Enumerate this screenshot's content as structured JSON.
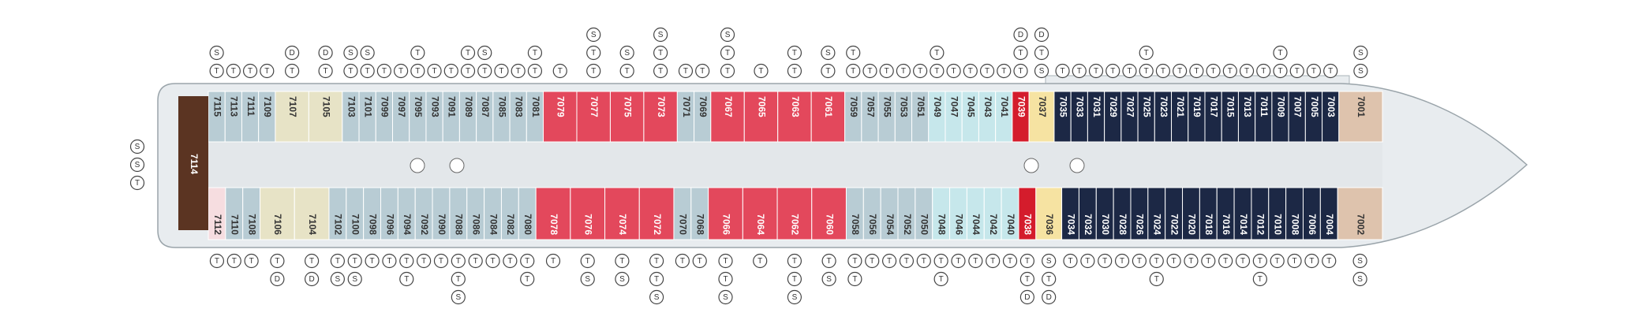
{
  "deck": {
    "stern_cabin": {
      "number": "7114",
      "color": "#5b3422"
    },
    "stern_icons": [
      "S",
      "S",
      "T"
    ],
    "top_cabins": [
      {
        "number": "7115",
        "color": "#b8ccd4",
        "icons": [
          "S",
          "T"
        ]
      },
      {
        "number": "7113",
        "color": "#b8ccd4",
        "icons": [
          "T"
        ]
      },
      {
        "number": "7111",
        "color": "#b8ccd4",
        "icons": [
          "T"
        ]
      },
      {
        "number": "7109",
        "color": "#b8ccd4",
        "icons": [
          "T"
        ]
      },
      {
        "number": "7107",
        "color": "#e7e3c6",
        "icons": [
          "D",
          "T"
        ]
      },
      {
        "number": "7105",
        "color": "#e7e3c6",
        "icons": [
          "D",
          "T"
        ]
      },
      {
        "number": "7103",
        "color": "#b8ccd4",
        "icons": [
          "S",
          "T"
        ]
      },
      {
        "number": "7101",
        "color": "#b8ccd4",
        "icons": [
          "S",
          "T"
        ]
      },
      {
        "number": "7099",
        "color": "#b8ccd4",
        "icons": [
          "T"
        ]
      },
      {
        "number": "7097",
        "color": "#b8ccd4",
        "icons": [
          "T"
        ]
      },
      {
        "number": "7095",
        "color": "#b8ccd4",
        "icons": [
          "T",
          "T"
        ]
      },
      {
        "number": "7093",
        "color": "#b8ccd4",
        "icons": [
          "T"
        ]
      },
      {
        "number": "7091",
        "color": "#b8ccd4",
        "icons": [
          "T"
        ]
      },
      {
        "number": "7089",
        "color": "#b8ccd4",
        "icons": [
          "T",
          "T"
        ]
      },
      {
        "number": "7087",
        "color": "#b8ccd4",
        "icons": [
          "S",
          "T"
        ]
      },
      {
        "number": "7085",
        "color": "#b8ccd4",
        "icons": [
          "T"
        ]
      },
      {
        "number": "7083",
        "color": "#b8ccd4",
        "icons": [
          "T"
        ]
      },
      {
        "number": "7081",
        "color": "#b8ccd4",
        "icons": [
          "T",
          "T"
        ]
      },
      {
        "number": "7079",
        "color": "#e3485c",
        "icons": [
          "T"
        ]
      },
      {
        "number": "7077",
        "color": "#e3485c",
        "icons": [
          "S",
          "T",
          "T"
        ]
      },
      {
        "number": "7075",
        "color": "#e3485c",
        "icons": [
          "S",
          "T"
        ]
      },
      {
        "number": "7073",
        "color": "#e3485c",
        "icons": [
          "S",
          "T",
          "T"
        ]
      },
      {
        "number": "7071",
        "color": "#b8ccd4",
        "icons": [
          "T"
        ]
      },
      {
        "number": "7069",
        "color": "#b8ccd4",
        "icons": [
          "T"
        ]
      },
      {
        "number": "7067",
        "color": "#e3485c",
        "icons": [
          "S",
          "T",
          "T"
        ]
      },
      {
        "number": "7065",
        "color": "#e3485c",
        "icons": [
          "T"
        ]
      },
      {
        "number": "7063",
        "color": "#e3485c",
        "icons": [
          "T",
          "T"
        ]
      },
      {
        "number": "7061",
        "color": "#e3485c",
        "icons": [
          "S",
          "T"
        ]
      },
      {
        "number": "7059",
        "color": "#b8ccd4",
        "icons": [
          "T",
          "T"
        ]
      },
      {
        "number": "7057",
        "color": "#b8ccd4",
        "icons": [
          "T"
        ]
      },
      {
        "number": "7055",
        "color": "#b8ccd4",
        "icons": [
          "T"
        ]
      },
      {
        "number": "7053",
        "color": "#b8ccd4",
        "icons": [
          "T"
        ]
      },
      {
        "number": "7051",
        "color": "#b8ccd4",
        "icons": [
          "T"
        ]
      },
      {
        "number": "7049",
        "color": "#c6e7eb",
        "icons": [
          "T",
          "T"
        ]
      },
      {
        "number": "7047",
        "color": "#c6e7eb",
        "icons": [
          "T"
        ]
      },
      {
        "number": "7045",
        "color": "#c6e7eb",
        "icons": [
          "T"
        ]
      },
      {
        "number": "7043",
        "color": "#c6e7eb",
        "icons": [
          "T"
        ]
      },
      {
        "number": "7041",
        "color": "#c6e7eb",
        "icons": [
          "T"
        ]
      },
      {
        "number": "7039",
        "color": "#d41c2c",
        "icons": [
          "D",
          "T",
          "T"
        ]
      },
      {
        "number": "7037",
        "color": "#f6e3a2",
        "icons": [
          "D",
          "T",
          "S"
        ]
      },
      {
        "number": "7035",
        "color": "#1c2845",
        "icons": [
          "T"
        ]
      },
      {
        "number": "7033",
        "color": "#1c2845",
        "icons": [
          "T"
        ]
      },
      {
        "number": "7031",
        "color": "#1c2845",
        "icons": [
          "T"
        ]
      },
      {
        "number": "7029",
        "color": "#1c2845",
        "icons": [
          "T"
        ]
      },
      {
        "number": "7027",
        "color": "#1c2845",
        "icons": [
          "T"
        ]
      },
      {
        "number": "7025",
        "color": "#1c2845",
        "icons": [
          "T",
          "T"
        ]
      },
      {
        "number": "7023",
        "color": "#1c2845",
        "icons": [
          "T"
        ]
      },
      {
        "number": "7021",
        "color": "#1c2845",
        "icons": [
          "T"
        ]
      },
      {
        "number": "7019",
        "color": "#1c2845",
        "icons": [
          "T"
        ]
      },
      {
        "number": "7017",
        "color": "#1c2845",
        "icons": [
          "T"
        ]
      },
      {
        "number": "7015",
        "color": "#1c2845",
        "icons": [
          "T"
        ]
      },
      {
        "number": "7013",
        "color": "#1c2845",
        "icons": [
          "T"
        ]
      },
      {
        "number": "7011",
        "color": "#1c2845",
        "icons": [
          "T"
        ]
      },
      {
        "number": "7009",
        "color": "#1c2845",
        "icons": [
          "T",
          "T"
        ]
      },
      {
        "number": "7007",
        "color": "#1c2845",
        "icons": [
          "T"
        ]
      },
      {
        "number": "7005",
        "color": "#1c2845",
        "icons": [
          "T"
        ]
      },
      {
        "number": "7003",
        "color": "#1c2845",
        "icons": [
          "T"
        ]
      },
      {
        "number": "7001",
        "color": "#dec3ad",
        "icons": [
          "S",
          "S"
        ]
      }
    ],
    "bottom_cabins": [
      {
        "number": "7112",
        "color": "#f6dde0",
        "icons": [
          "T"
        ]
      },
      {
        "number": "7110",
        "color": "#b8ccd4",
        "icons": [
          "T"
        ]
      },
      {
        "number": "7108",
        "color": "#b8ccd4",
        "icons": [
          "T"
        ]
      },
      {
        "number": "7106",
        "color": "#e7e3c6",
        "icons": [
          "T",
          "D"
        ]
      },
      {
        "number": "7104",
        "color": "#e7e3c6",
        "icons": [
          "T",
          "D"
        ]
      },
      {
        "number": "7102",
        "color": "#b8ccd4",
        "icons": [
          "T",
          "S"
        ]
      },
      {
        "number": "7100",
        "color": "#b8ccd4",
        "icons": [
          "T",
          "S"
        ]
      },
      {
        "number": "7098",
        "color": "#b8ccd4",
        "icons": [
          "T"
        ]
      },
      {
        "number": "7096",
        "color": "#b8ccd4",
        "icons": [
          "T"
        ]
      },
      {
        "number": "7094",
        "color": "#b8ccd4",
        "icons": [
          "T",
          "T"
        ]
      },
      {
        "number": "7092",
        "color": "#b8ccd4",
        "icons": [
          "T"
        ]
      },
      {
        "number": "7090",
        "color": "#b8ccd4",
        "icons": [
          "T"
        ]
      },
      {
        "number": "7088",
        "color": "#b8ccd4",
        "icons": [
          "T",
          "T",
          "S"
        ]
      },
      {
        "number": "7086",
        "color": "#b8ccd4",
        "icons": [
          "T"
        ]
      },
      {
        "number": "7084",
        "color": "#b8ccd4",
        "icons": [
          "T"
        ]
      },
      {
        "number": "7082",
        "color": "#b8ccd4",
        "icons": [
          "T"
        ]
      },
      {
        "number": "7080",
        "color": "#b8ccd4",
        "icons": [
          "T",
          "T"
        ]
      },
      {
        "number": "7078",
        "color": "#e3485c",
        "icons": [
          "T"
        ]
      },
      {
        "number": "7076",
        "color": "#e3485c",
        "icons": [
          "T",
          "S"
        ]
      },
      {
        "number": "7074",
        "color": "#e3485c",
        "icons": [
          "T",
          "S"
        ]
      },
      {
        "number": "7072",
        "color": "#e3485c",
        "icons": [
          "T",
          "T",
          "S"
        ]
      },
      {
        "number": "7070",
        "color": "#b8ccd4",
        "icons": [
          "T"
        ]
      },
      {
        "number": "7068",
        "color": "#b8ccd4",
        "icons": [
          "T"
        ]
      },
      {
        "number": "7066",
        "color": "#e3485c",
        "icons": [
          "T",
          "T",
          "S"
        ]
      },
      {
        "number": "7064",
        "color": "#e3485c",
        "icons": [
          "T"
        ]
      },
      {
        "number": "7062",
        "color": "#e3485c",
        "icons": [
          "T",
          "T",
          "S"
        ]
      },
      {
        "number": "7060",
        "color": "#e3485c",
        "icons": [
          "T",
          "S"
        ]
      },
      {
        "number": "7058",
        "color": "#b8ccd4",
        "icons": [
          "T",
          "T"
        ]
      },
      {
        "number": "7056",
        "color": "#b8ccd4",
        "icons": [
          "T"
        ]
      },
      {
        "number": "7054",
        "color": "#b8ccd4",
        "icons": [
          "T"
        ]
      },
      {
        "number": "7052",
        "color": "#b8ccd4",
        "icons": [
          "T"
        ]
      },
      {
        "number": "7050",
        "color": "#b8ccd4",
        "icons": [
          "T"
        ]
      },
      {
        "number": "7048",
        "color": "#c6e7eb",
        "icons": [
          "T",
          "T"
        ]
      },
      {
        "number": "7046",
        "color": "#c6e7eb",
        "icons": [
          "T"
        ]
      },
      {
        "number": "7044",
        "color": "#c6e7eb",
        "icons": [
          "T"
        ]
      },
      {
        "number": "7042",
        "color": "#c6e7eb",
        "icons": [
          "T"
        ]
      },
      {
        "number": "7040",
        "color": "#c6e7eb",
        "icons": [
          "T"
        ]
      },
      {
        "number": "7038",
        "color": "#d41c2c",
        "icons": [
          "T",
          "T",
          "D"
        ]
      },
      {
        "number": "7036",
        "color": "#f6e3a2",
        "icons": [
          "S",
          "T",
          "D"
        ]
      },
      {
        "number": "7034",
        "color": "#1c2845",
        "icons": [
          "T"
        ]
      },
      {
        "number": "7032",
        "color": "#1c2845",
        "icons": [
          "T"
        ]
      },
      {
        "number": "7030",
        "color": "#1c2845",
        "icons": [
          "T"
        ]
      },
      {
        "number": "7028",
        "color": "#1c2845",
        "icons": [
          "T"
        ]
      },
      {
        "number": "7026",
        "color": "#1c2845",
        "icons": [
          "T"
        ]
      },
      {
        "number": "7024",
        "color": "#1c2845",
        "icons": [
          "T",
          "T"
        ]
      },
      {
        "number": "7022",
        "color": "#1c2845",
        "icons": [
          "T"
        ]
      },
      {
        "number": "7020",
        "color": "#1c2845",
        "icons": [
          "T"
        ]
      },
      {
        "number": "7018",
        "color": "#1c2845",
        "icons": [
          "T"
        ]
      },
      {
        "number": "7016",
        "color": "#1c2845",
        "icons": [
          "T"
        ]
      },
      {
        "number": "7014",
        "color": "#1c2845",
        "icons": [
          "T"
        ]
      },
      {
        "number": "7012",
        "color": "#1c2845",
        "icons": [
          "T",
          "T"
        ]
      },
      {
        "number": "7010",
        "color": "#1c2845",
        "icons": [
          "T"
        ]
      },
      {
        "number": "7008",
        "color": "#1c2845",
        "icons": [
          "T"
        ]
      },
      {
        "number": "7006",
        "color": "#1c2845",
        "icons": [
          "T"
        ]
      },
      {
        "number": "7004",
        "color": "#1c2845",
        "icons": [
          "T"
        ]
      },
      {
        "number": "7002",
        "color": "#dec3ad",
        "icons": [
          "S",
          "S"
        ]
      }
    ]
  }
}
